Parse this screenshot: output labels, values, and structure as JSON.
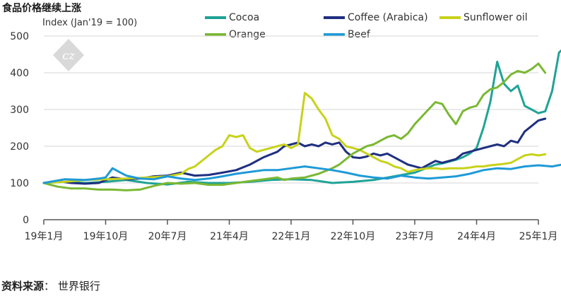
{
  "chart_data": {
    "type": "line",
    "title": "食品价格继续上涨",
    "subtitle": "Index (Jan'19 = 100)",
    "ylim": [
      0,
      500
    ],
    "yticks": [
      0,
      100,
      200,
      300,
      400,
      500
    ],
    "x_tick_labels": [
      "19年1月",
      "19年10月",
      "20年7月",
      "21年4月",
      "22年1月",
      "22年10月",
      "23年7月",
      "24年4月",
      "25年1月"
    ],
    "x_tick_month_index": [
      0,
      9,
      18,
      27,
      36,
      45,
      54,
      63,
      72
    ],
    "grid": "horizontal",
    "legend_position": "top-right",
    "series": [
      {
        "name": "Cocoa",
        "color": "#1fa396",
        "points": [
          [
            0,
            100
          ],
          [
            3,
            103
          ],
          [
            6,
            100
          ],
          [
            9,
            103
          ],
          [
            12,
            108
          ],
          [
            15,
            100
          ],
          [
            18,
            96
          ],
          [
            21,
            103
          ],
          [
            24,
            100
          ],
          [
            27,
            100
          ],
          [
            30,
            103
          ],
          [
            33,
            108
          ],
          [
            36,
            110
          ],
          [
            39,
            108
          ],
          [
            42,
            100
          ],
          [
            45,
            103
          ],
          [
            48,
            108
          ],
          [
            51,
            118
          ],
          [
            54,
            128
          ],
          [
            57,
            150
          ],
          [
            58,
            153
          ],
          [
            59,
            158
          ],
          [
            60,
            163
          ],
          [
            61,
            170
          ],
          [
            62,
            180
          ],
          [
            63,
            195
          ],
          [
            64,
            250
          ],
          [
            65,
            320
          ],
          [
            66,
            430
          ],
          [
            67,
            370
          ],
          [
            68,
            350
          ],
          [
            69,
            365
          ],
          [
            70,
            310
          ],
          [
            71,
            300
          ],
          [
            72,
            290
          ],
          [
            73,
            295
          ],
          [
            74,
            350
          ],
          [
            75,
            455
          ],
          [
            76,
            472
          ]
        ]
      },
      {
        "name": "Coffee (Arabica)",
        "color": "#1f2f80",
        "points": [
          [
            0,
            100
          ],
          [
            2,
            105
          ],
          [
            4,
            100
          ],
          [
            6,
            98
          ],
          [
            8,
            100
          ],
          [
            10,
            115
          ],
          [
            12,
            110
          ],
          [
            14,
            112
          ],
          [
            16,
            118
          ],
          [
            18,
            120
          ],
          [
            20,
            128
          ],
          [
            22,
            120
          ],
          [
            24,
            122
          ],
          [
            26,
            128
          ],
          [
            28,
            135
          ],
          [
            30,
            150
          ],
          [
            32,
            170
          ],
          [
            34,
            185
          ],
          [
            35,
            200
          ],
          [
            36,
            205
          ],
          [
            37,
            210
          ],
          [
            38,
            200
          ],
          [
            39,
            205
          ],
          [
            40,
            200
          ],
          [
            41,
            210
          ],
          [
            42,
            205
          ],
          [
            43,
            210
          ],
          [
            44,
            185
          ],
          [
            45,
            170
          ],
          [
            46,
            168
          ],
          [
            47,
            172
          ],
          [
            48,
            180
          ],
          [
            49,
            175
          ],
          [
            50,
            180
          ],
          [
            51,
            170
          ],
          [
            52,
            160
          ],
          [
            53,
            150
          ],
          [
            54,
            145
          ],
          [
            55,
            140
          ],
          [
            56,
            150
          ],
          [
            57,
            160
          ],
          [
            58,
            155
          ],
          [
            59,
            160
          ],
          [
            60,
            165
          ],
          [
            61,
            180
          ],
          [
            62,
            185
          ],
          [
            63,
            190
          ],
          [
            64,
            195
          ],
          [
            65,
            200
          ],
          [
            66,
            205
          ],
          [
            67,
            200
          ],
          [
            68,
            215
          ],
          [
            69,
            210
          ],
          [
            70,
            240
          ],
          [
            71,
            255
          ],
          [
            72,
            270
          ],
          [
            73,
            275
          ]
        ]
      },
      {
        "name": "Sunflower oil",
        "color": "#c8d21a",
        "points": [
          [
            0,
            100
          ],
          [
            3,
            103
          ],
          [
            6,
            108
          ],
          [
            9,
            110
          ],
          [
            12,
            112
          ],
          [
            15,
            115
          ],
          [
            18,
            118
          ],
          [
            20,
            125
          ],
          [
            21,
            138
          ],
          [
            22,
            145
          ],
          [
            23,
            160
          ],
          [
            24,
            175
          ],
          [
            25,
            190
          ],
          [
            26,
            200
          ],
          [
            27,
            230
          ],
          [
            28,
            225
          ],
          [
            29,
            230
          ],
          [
            30,
            195
          ],
          [
            31,
            185
          ],
          [
            32,
            190
          ],
          [
            33,
            195
          ],
          [
            34,
            200
          ],
          [
            35,
            205
          ],
          [
            36,
            195
          ],
          [
            37,
            205
          ],
          [
            38,
            345
          ],
          [
            39,
            330
          ],
          [
            40,
            300
          ],
          [
            41,
            275
          ],
          [
            42,
            230
          ],
          [
            43,
            220
          ],
          [
            44,
            200
          ],
          [
            45,
            195
          ],
          [
            46,
            190
          ],
          [
            47,
            180
          ],
          [
            48,
            170
          ],
          [
            49,
            160
          ],
          [
            50,
            155
          ],
          [
            51,
            145
          ],
          [
            52,
            140
          ],
          [
            53,
            130
          ],
          [
            54,
            135
          ],
          [
            55,
            138
          ],
          [
            56,
            140
          ],
          [
            57,
            140
          ],
          [
            58,
            138
          ],
          [
            59,
            140
          ],
          [
            60,
            140
          ],
          [
            61,
            140
          ],
          [
            62,
            142
          ],
          [
            63,
            145
          ],
          [
            64,
            145
          ],
          [
            65,
            148
          ],
          [
            66,
            150
          ],
          [
            67,
            152
          ],
          [
            68,
            155
          ],
          [
            69,
            165
          ],
          [
            70,
            175
          ],
          [
            71,
            178
          ],
          [
            72,
            175
          ],
          [
            73,
            178
          ]
        ]
      },
      {
        "name": "Orange",
        "color": "#7ab833",
        "points": [
          [
            0,
            100
          ],
          [
            2,
            90
          ],
          [
            4,
            85
          ],
          [
            6,
            85
          ],
          [
            8,
            82
          ],
          [
            10,
            82
          ],
          [
            12,
            80
          ],
          [
            14,
            82
          ],
          [
            16,
            92
          ],
          [
            18,
            100
          ],
          [
            20,
            98
          ],
          [
            22,
            100
          ],
          [
            24,
            95
          ],
          [
            26,
            95
          ],
          [
            28,
            100
          ],
          [
            30,
            105
          ],
          [
            32,
            110
          ],
          [
            34,
            115
          ],
          [
            35,
            108
          ],
          [
            36,
            112
          ],
          [
            38,
            115
          ],
          [
            40,
            125
          ],
          [
            42,
            140
          ],
          [
            43,
            150
          ],
          [
            44,
            165
          ],
          [
            45,
            180
          ],
          [
            46,
            190
          ],
          [
            47,
            200
          ],
          [
            48,
            205
          ],
          [
            49,
            215
          ],
          [
            50,
            225
          ],
          [
            51,
            230
          ],
          [
            52,
            220
          ],
          [
            53,
            235
          ],
          [
            54,
            260
          ],
          [
            55,
            280
          ],
          [
            56,
            300
          ],
          [
            57,
            320
          ],
          [
            58,
            315
          ],
          [
            59,
            285
          ],
          [
            60,
            260
          ],
          [
            61,
            295
          ],
          [
            62,
            305
          ],
          [
            63,
            310
          ],
          [
            64,
            340
          ],
          [
            65,
            355
          ],
          [
            66,
            360
          ],
          [
            67,
            375
          ],
          [
            68,
            395
          ],
          [
            69,
            405
          ],
          [
            70,
            400
          ],
          [
            71,
            410
          ],
          [
            72,
            425
          ],
          [
            73,
            400
          ]
        ]
      },
      {
        "name": "Beef",
        "color": "#1e9ad6",
        "points": [
          [
            0,
            100
          ],
          [
            3,
            110
          ],
          [
            6,
            108
          ],
          [
            8,
            112
          ],
          [
            9,
            115
          ],
          [
            10,
            140
          ],
          [
            11,
            130
          ],
          [
            12,
            120
          ],
          [
            14,
            112
          ],
          [
            16,
            110
          ],
          [
            18,
            118
          ],
          [
            20,
            112
          ],
          [
            22,
            108
          ],
          [
            24,
            112
          ],
          [
            26,
            118
          ],
          [
            28,
            125
          ],
          [
            30,
            130
          ],
          [
            32,
            135
          ],
          [
            34,
            135
          ],
          [
            36,
            140
          ],
          [
            38,
            145
          ],
          [
            40,
            140
          ],
          [
            42,
            135
          ],
          [
            44,
            128
          ],
          [
            46,
            120
          ],
          [
            48,
            115
          ],
          [
            50,
            112
          ],
          [
            52,
            120
          ],
          [
            54,
            115
          ],
          [
            56,
            112
          ],
          [
            58,
            115
          ],
          [
            60,
            118
          ],
          [
            62,
            125
          ],
          [
            64,
            135
          ],
          [
            66,
            140
          ],
          [
            68,
            138
          ],
          [
            70,
            145
          ],
          [
            72,
            148
          ],
          [
            74,
            145
          ],
          [
            76,
            152
          ]
        ]
      }
    ]
  },
  "source": {
    "label": "资料来源",
    "separator": "：",
    "text": "世界银行"
  }
}
